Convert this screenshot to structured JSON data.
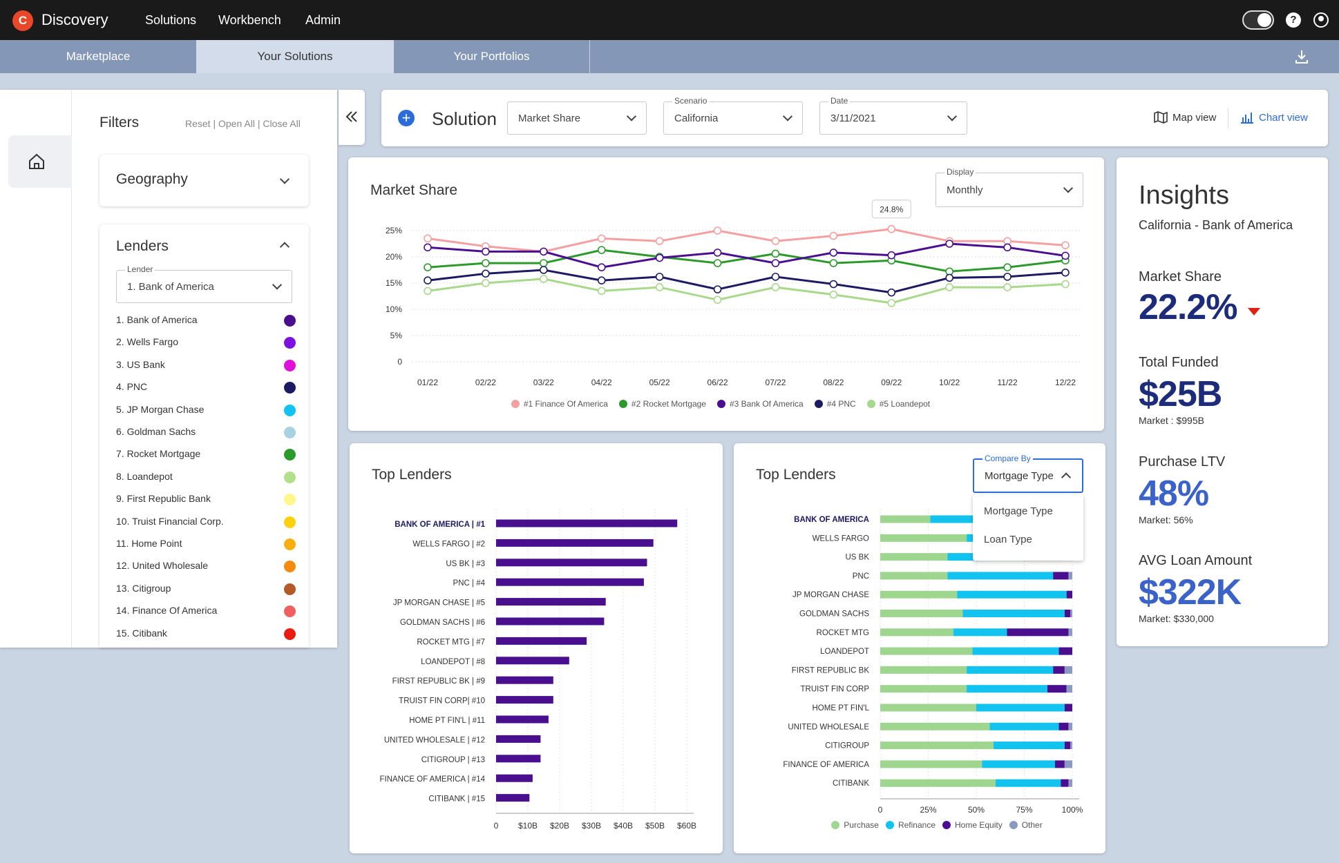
{
  "app": {
    "name": "Discovery",
    "logo_letter": "C"
  },
  "nav": {
    "solutions": "Solutions",
    "workbench": "Workbench",
    "admin": "Admin"
  },
  "tabs": [
    "Marketplace",
    "Your Solutions",
    "Your Portfolios"
  ],
  "filters": {
    "title": "Filters",
    "reset": "Reset",
    "open_all": "Open All",
    "close_all": "Close All",
    "sep": "|",
    "geography": "Geography",
    "lenders": "Lenders",
    "lender_label": "Lender",
    "lender_value": "1. Bank of America",
    "lender_list": [
      {
        "name": "1. Bank of America",
        "color": "#4a0f8f"
      },
      {
        "name": "2. Wells Fargo",
        "color": "#7b12e0"
      },
      {
        "name": "3. US Bank",
        "color": "#e010d8"
      },
      {
        "name": "4. PNC",
        "color": "#1c1a63"
      },
      {
        "name": "5. JP Morgan Chase",
        "color": "#12c3f0"
      },
      {
        "name": "6. Goldman Sachs",
        "color": "#a8d2e2"
      },
      {
        "name": "7. Rocket Mortgage",
        "color": "#2b9a2b"
      },
      {
        "name": "8. Loandepot",
        "color": "#b2e08a"
      },
      {
        "name": "9. First Republic Bank",
        "color": "#fff78a"
      },
      {
        "name": "10. Truist Financial Corp.",
        "color": "#fad10a"
      },
      {
        "name": "11. Home Point",
        "color": "#f5b010"
      },
      {
        "name": "12. United Wholesale",
        "color": "#f58a10"
      },
      {
        "name": "13. Citigroup",
        "color": "#b35a28"
      },
      {
        "name": "14. Finance Of America",
        "color": "#f06060"
      },
      {
        "name": "15. Citibank",
        "color": "#e81c10"
      }
    ]
  },
  "toolbar": {
    "solution_label": "Solution",
    "solution_value": "Market Share",
    "scenario_label": "Scenario",
    "scenario_value": "California",
    "date_label": "Date",
    "date_value": "3/11/2021",
    "map_view": "Map view",
    "chart_view": "Chart view"
  },
  "market_share": {
    "title": "Market Share",
    "display_label": "Display",
    "display_value": "Monthly",
    "tooltip": "24.8%"
  },
  "insights": {
    "title": "Insights",
    "subtitle": "California - Bank of America",
    "items": [
      {
        "label": "Market Share",
        "value": "22.2%",
        "sub": ""
      },
      {
        "label": "Total Funded",
        "value": "$25B",
        "sub": "Market : $995B"
      },
      {
        "label": "Purchase LTV",
        "value": "48%",
        "sub": "Market: 56%"
      },
      {
        "label": "AVG Loan Amount",
        "value": "$322K",
        "sub": "Market: $330,000"
      }
    ]
  },
  "top_lenders_1": {
    "title": "Top Lenders"
  },
  "top_lenders_2": {
    "title": "Top Lenders",
    "compare_label": "Compare By",
    "compare_value": "Mortgage Type",
    "options": [
      "Mortgage Type",
      "Loan Type"
    ]
  },
  "colors": {
    "accent": "#2b6cd8",
    "insight_value": "#1c2c7a",
    "insight_value_light": "#3a62c8",
    "down_arrow": "#e0210f",
    "bar": "#4a0f8f"
  },
  "chart_data": [
    {
      "type": "line",
      "title": "Market Share",
      "categories": [
        "01/22",
        "02/22",
        "03/22",
        "04/22",
        "05/22",
        "06/22",
        "07/22",
        "08/22",
        "09/22",
        "10/22",
        "11/22",
        "12/22"
      ],
      "y_ticks": [
        "0",
        "5%",
        "10%",
        "15%",
        "20%",
        "25%"
      ],
      "ylim": [
        0,
        25
      ],
      "grid": true,
      "legend": "bottom",
      "series": [
        {
          "name": "#1 Finance Of America",
          "color": "#f4a0a0",
          "values": [
            23.5,
            22,
            21,
            23.5,
            23,
            25,
            23,
            24,
            25.3,
            23,
            23,
            22.2
          ]
        },
        {
          "name": "#2 Rocket Mortgage",
          "color": "#2b9a2b",
          "values": [
            18,
            18.8,
            18.8,
            21.3,
            20,
            18.8,
            20.6,
            18.8,
            19.3,
            17.2,
            18,
            19.3
          ]
        },
        {
          "name": "#3 Bank Of America",
          "color": "#4a0f8f",
          "values": [
            21.8,
            21,
            21,
            18,
            19.8,
            20.8,
            18.8,
            20.8,
            20.3,
            22.5,
            21.8,
            20.2
          ]
        },
        {
          "name": "#4 PNC",
          "color": "#1c1a63",
          "values": [
            15.5,
            16.8,
            17.5,
            15.5,
            16.2,
            13.8,
            16.2,
            14.8,
            13.2,
            16,
            16.2,
            17
          ]
        },
        {
          "name": "#5 Loandepot",
          "color": "#a8d88a",
          "values": [
            13.5,
            15,
            15.8,
            13.5,
            14.2,
            11.8,
            14.2,
            12.8,
            11.2,
            14.2,
            14.2,
            14.8
          ]
        }
      ]
    },
    {
      "type": "bar",
      "orientation": "horizontal",
      "title": "Top Lenders",
      "categories": [
        "BANK OF AMERICA | #1",
        "WELLS FARGO | #2",
        "US BK | #3",
        "PNC | #4",
        "JP MORGAN CHASE | #5",
        "GOLDMAN SACHS | #6",
        "ROCKET MTG | #7",
        "LOANDEPOT | #8",
        "FIRST REPUBLIC BK | #9",
        "TRUIST FIN CORP| #10",
        "HOME PT FIN'L | #11",
        "UNITED WHOLESALE | #12",
        "CITIGROUP | #13",
        "FINANCE OF AMERICA | #14",
        "CITIBANK | #15"
      ],
      "values": [
        57,
        49.5,
        47.5,
        46.5,
        34.5,
        34,
        28.5,
        23,
        18,
        18,
        16.5,
        14,
        14,
        11.5,
        10.5
      ],
      "x_ticks": [
        "0",
        "$10B",
        "$20B",
        "$30B",
        "$40B",
        "$50B",
        "$60B"
      ],
      "xlim": [
        0,
        60
      ],
      "grid": true
    },
    {
      "type": "bar",
      "orientation": "horizontal",
      "stacked": true,
      "title": "Top Lenders",
      "categories": [
        "BANK OF AMERICA",
        "WELLS FARGO",
        "US BK",
        "PNC",
        "JP MORGAN CHASE",
        "GOLDMAN SACHS",
        "ROCKET MTG",
        "LOANDEPOT",
        "FIRST REPUBLIC BK",
        "TRUIST FIN CORP",
        "HOME PT FIN'L",
        "UNITED WHOLESALE",
        "CITIGROUP",
        "FINANCE OF AMERICA",
        "CITIBANK"
      ],
      "x_ticks": [
        "0",
        "25%",
        "50%",
        "75%",
        "100%"
      ],
      "xlim": [
        0,
        100
      ],
      "grid": true,
      "legend": "bottom",
      "series": [
        {
          "name": "Purchase",
          "color": "#9fd68f",
          "values": [
            26,
            45,
            35,
            35,
            40,
            43,
            38,
            48,
            45,
            45,
            50,
            57,
            59,
            53,
            60
          ]
        },
        {
          "name": "Refinance",
          "color": "#12c3f0",
          "values": [
            52,
            5,
            40,
            55,
            57,
            53,
            28,
            45,
            45,
            42,
            46,
            36,
            37,
            38,
            34
          ]
        },
        {
          "name": "Home Equity",
          "color": "#4a0f8f",
          "values": [
            15,
            40,
            20,
            8,
            3,
            3,
            32,
            7,
            6,
            10,
            4,
            5,
            3,
            5,
            4
          ]
        },
        {
          "name": "Other",
          "color": "#8a9ac0",
          "values": [
            7,
            10,
            5,
            2,
            0,
            1,
            2,
            0,
            4,
            3,
            0,
            2,
            1,
            4,
            2
          ]
        }
      ]
    }
  ]
}
